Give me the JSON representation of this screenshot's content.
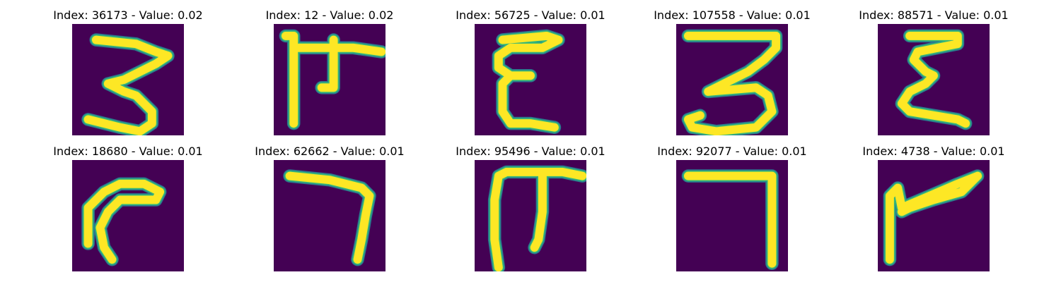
{
  "colors": {
    "background": "#440154",
    "stroke_core": "#fde725",
    "stroke_edge_outer": "#2a788e",
    "stroke_edge_inner": "#35b779"
  },
  "panels": [
    {
      "title": "Index: 36173 - Value: 0.02",
      "glyph": "zigzag-three"
    },
    {
      "title": "Index: 12 - Value: 0.02",
      "glyph": "pi-with-tick"
    },
    {
      "title": "Index: 56725 - Value: 0.01",
      "glyph": "epsilon"
    },
    {
      "title": "Index: 107558 - Value: 0.01",
      "glyph": "script-three"
    },
    {
      "title": "Index: 88571 - Value: 0.01",
      "glyph": "sigma-epsilon"
    },
    {
      "title": "Index: 18680 - Value: 0.01",
      "glyph": "hook-c"
    },
    {
      "title": "Index: 62662 - Value: 0.01",
      "glyph": "seven"
    },
    {
      "title": "Index: 95496 - Value: 0.01",
      "glyph": "pi"
    },
    {
      "title": "Index: 92077 - Value: 0.01",
      "glyph": "gamma-seven"
    },
    {
      "title": "Index: 4738 - Value: 0.01",
      "glyph": "flag"
    }
  ]
}
